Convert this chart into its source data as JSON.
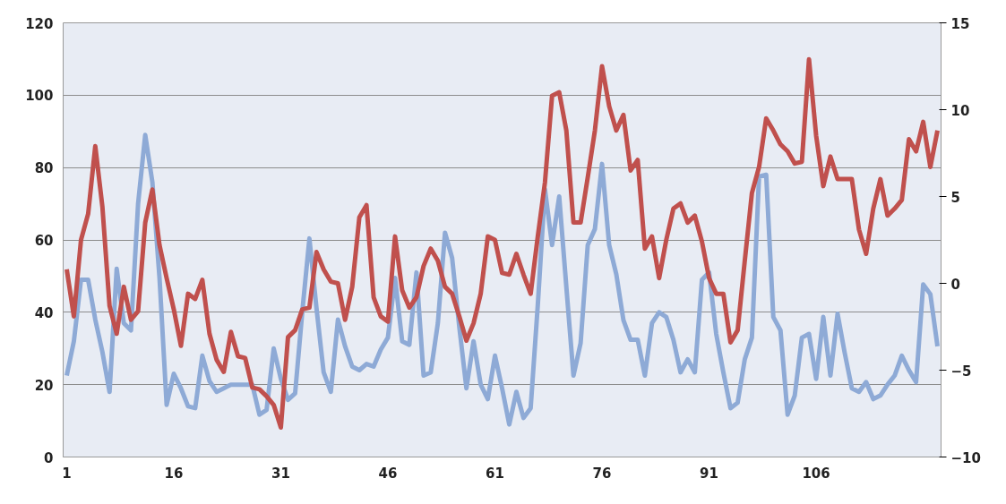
{
  "chart_data": {
    "type": "line",
    "x": [
      1,
      2,
      3,
      4,
      5,
      6,
      7,
      8,
      9,
      10,
      11,
      12,
      13,
      14,
      15,
      16,
      17,
      18,
      19,
      20,
      21,
      22,
      23,
      24,
      25,
      26,
      27,
      28,
      29,
      30,
      31,
      32,
      33,
      34,
      35,
      36,
      37,
      38,
      39,
      40,
      41,
      42,
      43,
      44,
      45,
      46,
      47,
      48,
      49,
      50,
      51,
      52,
      53,
      54,
      55,
      56,
      57,
      58,
      59,
      60,
      61,
      62,
      63,
      64,
      65,
      66,
      67,
      68,
      69,
      70,
      71,
      72,
      73,
      74,
      75,
      76,
      77,
      78,
      79,
      80,
      81,
      82,
      83,
      84,
      85,
      86,
      87,
      88,
      89,
      90,
      91,
      92,
      93,
      94,
      95,
      96,
      97,
      98,
      99,
      100,
      101,
      102,
      103,
      104,
      105,
      106,
      107,
      108,
      109,
      110,
      111,
      112,
      113,
      114,
      115,
      116,
      117,
      118,
      119,
      120,
      121,
      122,
      123
    ],
    "series": [
      {
        "color": "#8eaad6",
        "values": [
          22.5,
          32,
          49,
          49,
          38,
          29,
          18,
          52,
          37,
          35,
          70,
          89,
          76,
          49.5,
          14.4,
          23,
          19,
          14,
          13.5,
          28,
          21,
          18,
          19,
          20,
          20,
          20,
          20,
          11.7,
          13,
          30,
          21.6,
          15.8,
          17.6,
          40,
          60.4,
          41,
          23.4,
          18,
          38,
          30.6,
          25,
          24,
          25.7,
          25,
          29.7,
          33,
          49.5,
          32,
          31,
          51,
          22.5,
          23.4,
          37,
          62,
          55,
          36,
          19,
          32,
          20,
          16,
          28,
          19,
          9,
          18,
          10.8,
          13.5,
          42,
          74,
          58.6,
          72,
          47,
          22.5,
          31.5,
          58.6,
          63,
          81,
          58.6,
          50.5,
          37.8,
          32.4,
          32.4,
          22.5,
          37,
          40,
          38.7,
          32.4,
          23.4,
          27,
          23.4,
          49,
          51,
          34,
          23.4,
          13.5,
          15,
          27,
          33,
          77.5,
          78,
          38.7,
          35,
          11.7,
          17,
          33,
          34,
          21.6,
          38.7,
          22.5,
          39.6,
          28.8,
          19,
          18,
          20.7,
          16,
          17,
          20,
          22.5,
          28,
          24,
          20.7,
          47.7,
          45,
          30.6
        ]
      },
      {
        "color": "#c0504d",
        "axis": "y2",
        "values": [
          0.8,
          -1.9,
          2.5,
          4.0,
          7.9,
          4.4,
          -1.3,
          -2.9,
          -0.2,
          -2.1,
          -1.6,
          3.5,
          5.4,
          2.2,
          0.3,
          -1.5,
          -3.6,
          -0.6,
          -0.9,
          0.2,
          -2.9,
          -4.4,
          -5.1,
          -2.8,
          -4.2,
          -4.3,
          -6.0,
          -6.1,
          -6.5,
          -7.0,
          -8.3,
          -3.1,
          -2.7,
          -1.5,
          -1.4,
          1.8,
          0.8,
          0.1,
          0.0,
          -2.1,
          -0.2,
          3.8,
          4.5,
          -0.8,
          -1.9,
          -2.2,
          2.7,
          -0.4,
          -1.4,
          -0.8,
          1.0,
          2.0,
          1.3,
          -0.2,
          -0.6,
          -1.9,
          -3.3,
          -2.3,
          -0.6,
          2.7,
          2.5,
          0.6,
          0.5,
          1.7,
          0.5,
          -0.6,
          2.7,
          5.8,
          10.8,
          11.0,
          8.8,
          3.5,
          3.5,
          6.1,
          8.8,
          12.5,
          10.2,
          8.8,
          9.7,
          6.5,
          7.1,
          2.0,
          2.7,
          0.3,
          2.5,
          4.3,
          4.6,
          3.5,
          3.9,
          2.4,
          0.3,
          -0.6,
          -0.6,
          -3.4,
          -2.7,
          1.3,
          5.2,
          6.7,
          9.5,
          8.8,
          8.0,
          7.6,
          6.9,
          7.0,
          12.9,
          8.5,
          5.6,
          7.3,
          6.0,
          6.0,
          6.0,
          3.1,
          1.7,
          4.3,
          6.0,
          3.9,
          4.3,
          4.8,
          8.3,
          7.6,
          9.3,
          6.7,
          8.8
        ]
      }
    ],
    "xlim": [
      0.5,
      123.5
    ],
    "xticks": [
      1,
      16,
      31,
      46,
      61,
      76,
      91,
      106
    ],
    "ylim": [
      0,
      120
    ],
    "yticks": [
      0,
      20,
      40,
      60,
      80,
      100,
      120
    ],
    "y2lim": [
      -10,
      15
    ],
    "y2ticks": [
      -10,
      -5,
      0,
      5,
      10,
      15
    ],
    "grid": "y",
    "marker": "none",
    "line_style": "solid"
  }
}
